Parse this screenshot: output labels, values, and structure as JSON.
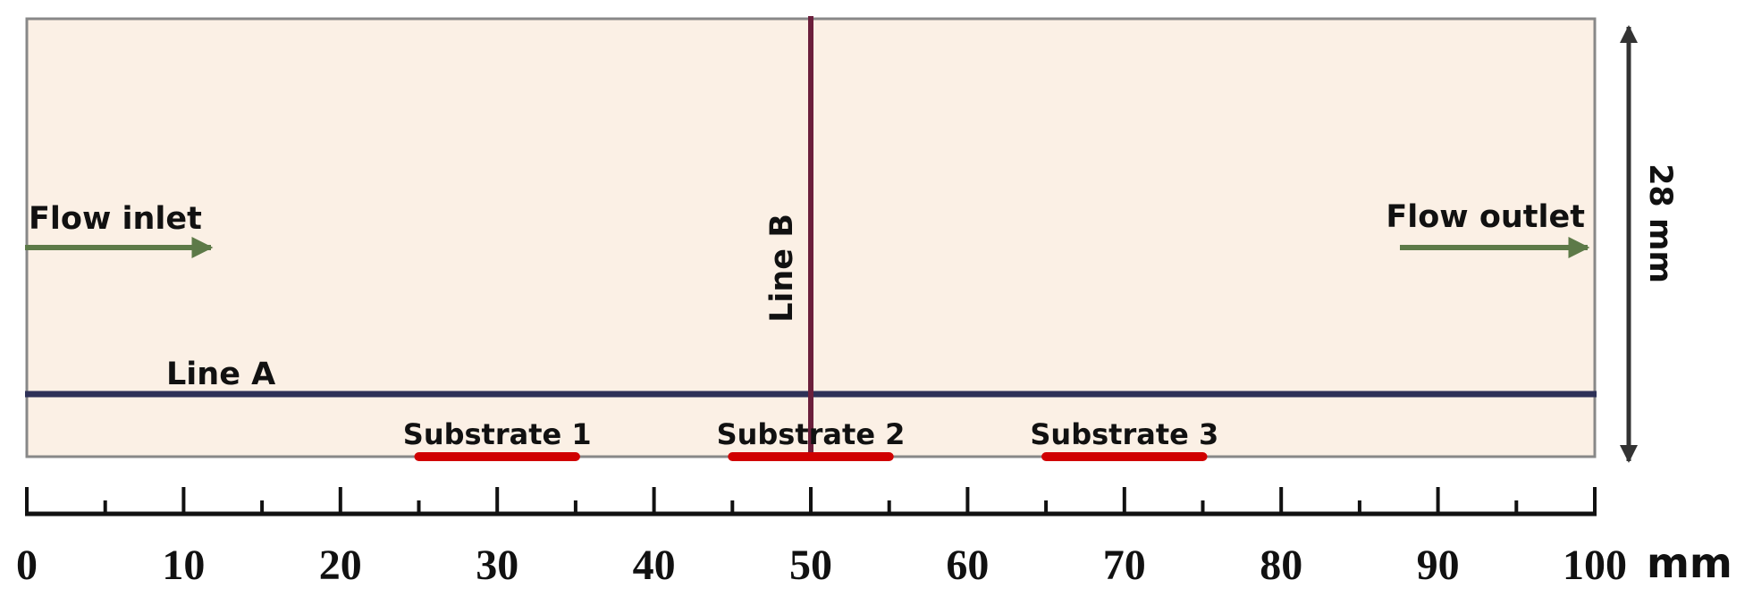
{
  "diagram": {
    "domain_labels": {
      "inlet": "Flow inlet",
      "outlet": "Flow outlet",
      "line_a": "Line A",
      "line_b": "Line B",
      "height": "28 mm"
    },
    "substrates": [
      {
        "label": "Substrate 1",
        "start_mm": 25,
        "end_mm": 35
      },
      {
        "label": "Substrate 2",
        "start_mm": 45,
        "end_mm": 55
      },
      {
        "label": "Substrate 3",
        "start_mm": 65,
        "end_mm": 75
      }
    ],
    "scale": {
      "labels": [
        "0",
        "10",
        "20",
        "30",
        "40",
        "50",
        "60",
        "70",
        "80",
        "90",
        "100"
      ],
      "unit": "mm"
    },
    "colors": {
      "domain_fill": "#fbf0e5",
      "domain_border": "#888888",
      "line_a": "#2e3158",
      "line_b": "#6b1f3c",
      "substrate": "#d00000",
      "arrow": "#5d7a48",
      "scale": "#111111"
    }
  }
}
